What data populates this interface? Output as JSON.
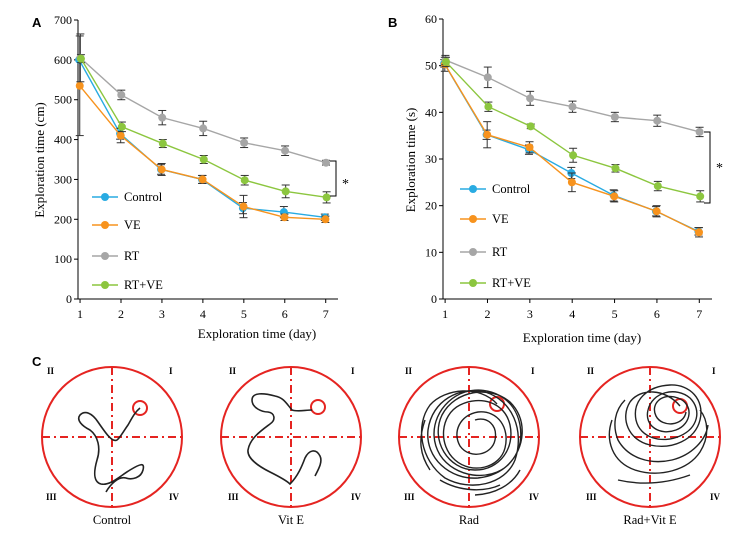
{
  "chart_data": [
    {
      "panel": "A",
      "type": "line",
      "xlabel": "Exploration time (day)",
      "ylabel": "Exploration time (cm)",
      "x": [
        1,
        2,
        3,
        4,
        5,
        6,
        7
      ],
      "ylim": [
        0,
        700
      ],
      "yticks": [
        0,
        100,
        200,
        300,
        400,
        500,
        600,
        700
      ],
      "significance": "*",
      "series": [
        {
          "name": "Control",
          "color": "#29abe2",
          "values": [
            600,
            415,
            325,
            300,
            228,
            218,
            205
          ],
          "errors": [
            0,
            14,
            12,
            10,
            14,
            14,
            8
          ]
        },
        {
          "name": "VE",
          "color": "#f7931e",
          "values": [
            535,
            410,
            325,
            300,
            232,
            205,
            200
          ],
          "errors": [
            125,
            18,
            15,
            10,
            28,
            8,
            8
          ]
        },
        {
          "name": "RT",
          "color": "#a6a6a6",
          "values": [
            605,
            512,
            455,
            428,
            392,
            372,
            342
          ],
          "errors": [
            60,
            12,
            18,
            18,
            12,
            12,
            6
          ]
        },
        {
          "name": "RT+VE",
          "color": "#8cc63f",
          "values": [
            603,
            432,
            390,
            350,
            298,
            270,
            255
          ],
          "errors": [
            10,
            12,
            10,
            10,
            12,
            16,
            14
          ]
        }
      ]
    },
    {
      "panel": "B",
      "type": "line",
      "xlabel": "Exploration time (day)",
      "ylabel": "Exploration time (s)",
      "x": [
        1,
        2,
        3,
        4,
        5,
        6,
        7
      ],
      "ylim": [
        0,
        60
      ],
      "yticks": [
        0,
        10,
        20,
        30,
        40,
        50,
        60
      ],
      "significance": "*",
      "series": [
        {
          "name": "Control",
          "color": "#29abe2",
          "values": [
            50.5,
            35.2,
            32,
            27,
            22.2,
            18.8,
            14.5
          ],
          "errors": [
            0.8,
            1,
            1,
            1.2,
            1.2,
            1,
            0.8
          ]
        },
        {
          "name": "VE",
          "color": "#f7931e",
          "values": [
            50.3,
            35.2,
            32.5,
            25,
            22,
            18.8,
            14.3
          ],
          "errors": [
            1.5,
            2.8,
            1.2,
            2,
            1.2,
            1.2,
            1
          ]
        },
        {
          "name": "RT",
          "color": "#a6a6a6",
          "values": [
            51.2,
            47.5,
            43,
            41.2,
            39,
            38.2,
            35.8
          ],
          "errors": [
            1,
            2.2,
            1.5,
            1.2,
            1,
            1.2,
            1
          ]
        },
        {
          "name": "RT+VE",
          "color": "#8cc63f",
          "values": [
            50.8,
            41.2,
            37,
            30.8,
            28,
            24.2,
            22
          ],
          "errors": [
            1,
            1,
            0.5,
            1.5,
            0.8,
            1,
            1.2
          ]
        }
      ]
    }
  ],
  "figure": {
    "panel_labels": [
      "A",
      "B",
      "C"
    ],
    "mazes": [
      {
        "label": "Control"
      },
      {
        "label": "Vit E"
      },
      {
        "label": "Rad"
      },
      {
        "label": "Rad+Vit E"
      }
    ],
    "quadrants": [
      "II",
      "I",
      "III",
      "IV"
    ]
  }
}
